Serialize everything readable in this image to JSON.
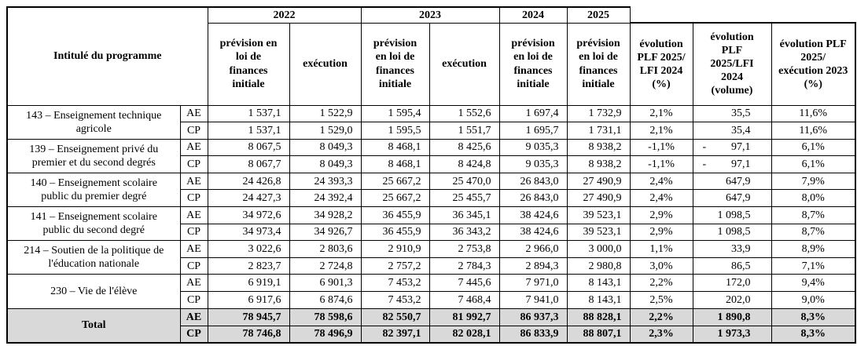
{
  "table": {
    "header": {
      "program_title": "Intitulé du programme",
      "years": [
        "2022",
        "2023",
        "2024",
        "2025"
      ],
      "subcolumns": [
        "prévision en\nloi de\nfinances\ninitiale",
        "exécution",
        "prévision\nen loi de\nfinances\ninitiale",
        "exécution",
        "prévision\nen loi de\nfinances\ninitiale",
        "prévision\nen loi de\nfinances\ninitiale",
        "évolution\nPLF 2025/\nLFI 2024\n(%)",
        "évolution\nPLF\n2025/LFI\n2024\n(volume)",
        "évolution PLF\n2025/\nexécution 2023\n(%)"
      ]
    },
    "row_type_labels": {
      "ae": "AE",
      "cp": "CP"
    },
    "programs": [
      {
        "program": "143 – Enseignement technique agricole",
        "ae": [
          "1 537,1",
          "1 522,9",
          "1 595,4",
          "1 552,6",
          "1 697,4",
          "1 732,9",
          "2,1%",
          "35,5",
          "11,6%"
        ],
        "cp": [
          "1 537,1",
          "1 529,0",
          "1 595,5",
          "1 551,7",
          "1 695,7",
          "1 731,1",
          "2,1%",
          "35,4",
          "11,6%"
        ]
      },
      {
        "program": "139 – Enseignement privé du premier et du second degrés",
        "ae": [
          "8 067,5",
          "8 049,3",
          "8 468,1",
          "8 425,6",
          "9 035,3",
          "8 938,2",
          "-1,1%",
          "- 97,1",
          "6,1%"
        ],
        "cp": [
          "8 067,7",
          "8 049,3",
          "8 468,1",
          "8 424,8",
          "9 035,3",
          "8 938,2",
          "-1,1%",
          "- 97,1",
          "6,1%"
        ]
      },
      {
        "program": "140 – Enseignement scolaire public du premier degré",
        "ae": [
          "24 426,8",
          "24 393,3",
          "25 667,2",
          "25 470,0",
          "26 843,0",
          "27 490,9",
          "2,4%",
          "647,9",
          "7,9%"
        ],
        "cp": [
          "24 427,3",
          "24 392,4",
          "25 667,2",
          "25 455,7",
          "26 843,0",
          "27 490,9",
          "2,4%",
          "647,9",
          "8,0%"
        ]
      },
      {
        "program": "141 – Enseignement scolaire public du second degré",
        "ae": [
          "34 972,6",
          "34 928,2",
          "36 455,9",
          "36 345,1",
          "38 424,6",
          "39 523,1",
          "2,9%",
          "1 098,5",
          "8,7%"
        ],
        "cp": [
          "34 973,4",
          "34 926,7",
          "36 455,9",
          "36 343,2",
          "38 424,6",
          "39 523,1",
          "2,9%",
          "1 098,5",
          "8,7%"
        ]
      },
      {
        "program": "214 – Soutien de la politique de l'éducation nationale",
        "ae": [
          "3 022,6",
          "2 803,6",
          "2 910,9",
          "2 753,8",
          "2 966,0",
          "3 000,0",
          "1,1%",
          "33,9",
          "8,9%"
        ],
        "cp": [
          "2 823,7",
          "2 724,8",
          "2 757,2",
          "2 784,3",
          "2 894,3",
          "2 980,8",
          "3,0%",
          "86,5",
          "7,1%"
        ]
      },
      {
        "program": "230 – Vie de l'élève",
        "ae": [
          "6 919,1",
          "6 901,3",
          "7 453,2",
          "7 445,6",
          "7 971,0",
          "8 143,1",
          "2,2%",
          "172,0",
          "9,4%"
        ],
        "cp": [
          "6 917,6",
          "6 874,6",
          "7 453,2",
          "7 468,4",
          "7 941,0",
          "8 143,1",
          "2,5%",
          "202,0",
          "9,0%"
        ]
      }
    ],
    "total": {
      "program": "Total",
      "ae": [
        "78 945,7",
        "78 598,6",
        "82 550,7",
        "81 992,7",
        "86 937,3",
        "88 828,1",
        "2,2%",
        "1 890,8",
        "8,3%"
      ],
      "cp": [
        "78 746,8",
        "78 496,9",
        "82 397,1",
        "82 028,1",
        "86 833,9",
        "88 807,1",
        "2,3%",
        "1 973,3",
        "8,3%"
      ]
    },
    "colors": {
      "total_row_bg": "#d9d9d9",
      "border": "#000000",
      "text": "#000000"
    }
  }
}
